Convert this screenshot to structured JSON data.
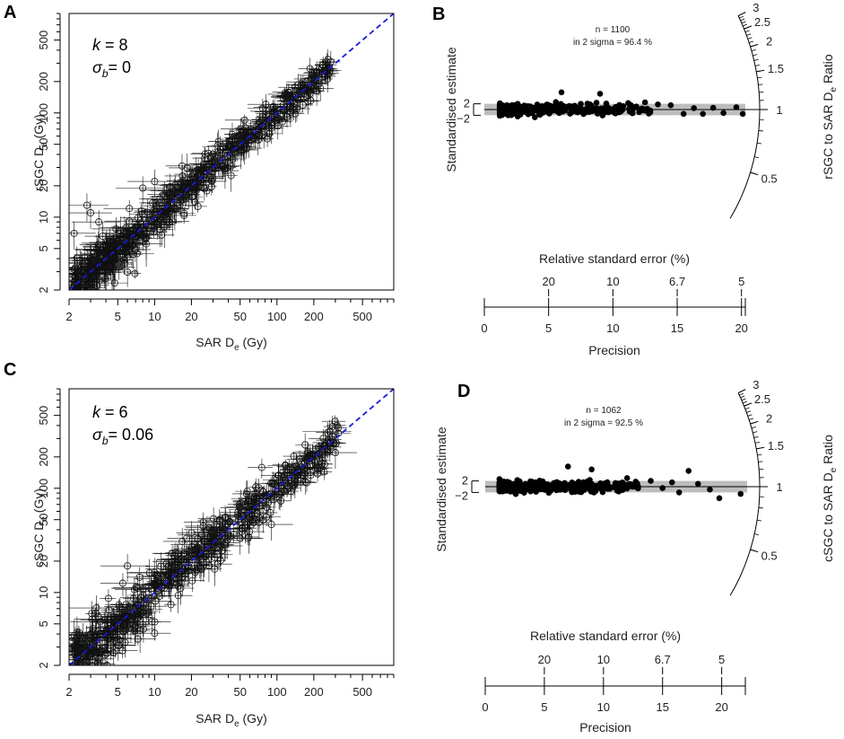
{
  "chart_data": [
    {
      "panel": "A",
      "type": "scatter",
      "xlabel": "SAR",
      "xlabel_sub": "D",
      "xlabel_subsub": "e",
      "xlabel_unit": "(Gy)",
      "ylabel": "rSGC",
      "ylabel_sub": "D",
      "ylabel_subsub": "e",
      "ylabel_unit": "(Gy)",
      "scale": "log",
      "xlim": [
        2,
        900
      ],
      "ylim": [
        2,
        900
      ],
      "xticks": [
        "2",
        "5",
        "10",
        "20",
        "50",
        "100",
        "200",
        "500"
      ],
      "yticks": [
        "2",
        "5",
        "10",
        "20",
        "50",
        "100",
        "200",
        "500"
      ],
      "tick_values": [
        2,
        5,
        10,
        20,
        50,
        100,
        200,
        500
      ],
      "annotation_k": "k",
      "annotation_k_value": "= 8",
      "annotation_sigma": "σ",
      "annotation_sigma_sub": "b",
      "annotation_sigma_value": "= 0",
      "reference_line": "1:1 dashed",
      "reference_color": "#1a1adb",
      "n_points_approx": 1100,
      "x_range_data": [
        2.2,
        280
      ],
      "outliers": [
        {
          "x": 2.8,
          "y": 13
        },
        {
          "x": 3.0,
          "y": 11
        },
        {
          "x": 8.0,
          "y": 19
        },
        {
          "x": 10.0,
          "y": 22
        },
        {
          "x": 2.2,
          "y": 7
        },
        {
          "x": 3.5,
          "y": 9
        }
      ]
    },
    {
      "panel": "B",
      "type": "radial",
      "stat_n": "n = 1100",
      "stat_sigma": "in 2 sigma = 96.4 %",
      "ylabel": "Standardised estimate",
      "ytick_upper": "2",
      "ytick_lower": "−2",
      "xlabel_top": "Relative standard error (%)",
      "xticks_top": [
        "20",
        "10",
        "6.7",
        "5"
      ],
      "xticks_top_values": [
        5,
        10,
        15,
        20
      ],
      "xlabel_bottom": "Precision",
      "xticks_bottom": [
        "0",
        "5",
        "10",
        "15",
        "20"
      ],
      "xticks_bottom_values": [
        0,
        5,
        10,
        15,
        20
      ],
      "xlim": [
        0,
        20.3
      ],
      "arc_labels": [
        "3",
        "2.5",
        "2",
        "1.5",
        "1",
        "0.5"
      ],
      "arc_values": [
        3,
        2.5,
        2,
        1.5,
        1,
        0.5
      ],
      "arc_title": "rSGC to SAR",
      "arc_title_sub": "D",
      "arc_title_subsub": "e",
      "arc_title_unit": "Ratio",
      "band_color": "#bdbdbd",
      "precision_range": [
        1.2,
        20.3
      ]
    },
    {
      "panel": "C",
      "type": "scatter",
      "xlabel": "SAR",
      "xlabel_sub": "D",
      "xlabel_subsub": "e",
      "xlabel_unit": "(Gy)",
      "ylabel": "cSGC",
      "ylabel_sub": "D",
      "ylabel_subsub": "e",
      "ylabel_unit": "(Gy)",
      "scale": "log",
      "xlim": [
        2,
        900
      ],
      "ylim": [
        2,
        900
      ],
      "xticks": [
        "2",
        "5",
        "10",
        "20",
        "50",
        "100",
        "200",
        "500"
      ],
      "yticks": [
        "2",
        "5",
        "10",
        "20",
        "50",
        "100",
        "200",
        "500"
      ],
      "tick_values": [
        2,
        5,
        10,
        20,
        50,
        100,
        200,
        500
      ],
      "annotation_k": "k",
      "annotation_k_value": "= 6",
      "annotation_sigma": "σ",
      "annotation_sigma_sub": "b",
      "annotation_sigma_value": "= 0.06",
      "reference_line": "1:1 dashed",
      "reference_color": "#1a1adb",
      "n_points_approx": 1062,
      "x_range_data": [
        2.2,
        320
      ],
      "outliers": [
        {
          "x": 50,
          "y": 33
        },
        {
          "x": 90,
          "y": 45
        },
        {
          "x": 35,
          "y": 28
        },
        {
          "x": 6,
          "y": 18
        },
        {
          "x": 270,
          "y": 350
        },
        {
          "x": 300,
          "y": 220
        }
      ]
    },
    {
      "panel": "D",
      "type": "radial",
      "stat_n": "n = 1062",
      "stat_sigma": "in 2 sigma = 92.5 %",
      "ylabel": "Standardised estimate",
      "ytick_upper": "2",
      "ytick_lower": "−2",
      "xlabel_top": "Relative standard error (%)",
      "xticks_top": [
        "20",
        "10",
        "6.7",
        "5"
      ],
      "xticks_top_values": [
        5,
        10,
        15,
        20
      ],
      "xlabel_bottom": "Precision",
      "xticks_bottom": [
        "0",
        "5",
        "10",
        "15",
        "20"
      ],
      "xticks_bottom_values": [
        0,
        5,
        10,
        15,
        20
      ],
      "xlim": [
        0,
        22
      ],
      "arc_labels": [
        "3",
        "2.5",
        "2",
        "1.5",
        "1",
        "0.5"
      ],
      "arc_values": [
        3,
        2.5,
        2,
        1.5,
        1,
        0.5
      ],
      "arc_title": "cSGC to SAR",
      "arc_title_sub": "D",
      "arc_title_subsub": "e",
      "arc_title_unit": "Ratio",
      "band_color": "#bdbdbd",
      "precision_range": [
        1.2,
        21.8
      ]
    }
  ]
}
